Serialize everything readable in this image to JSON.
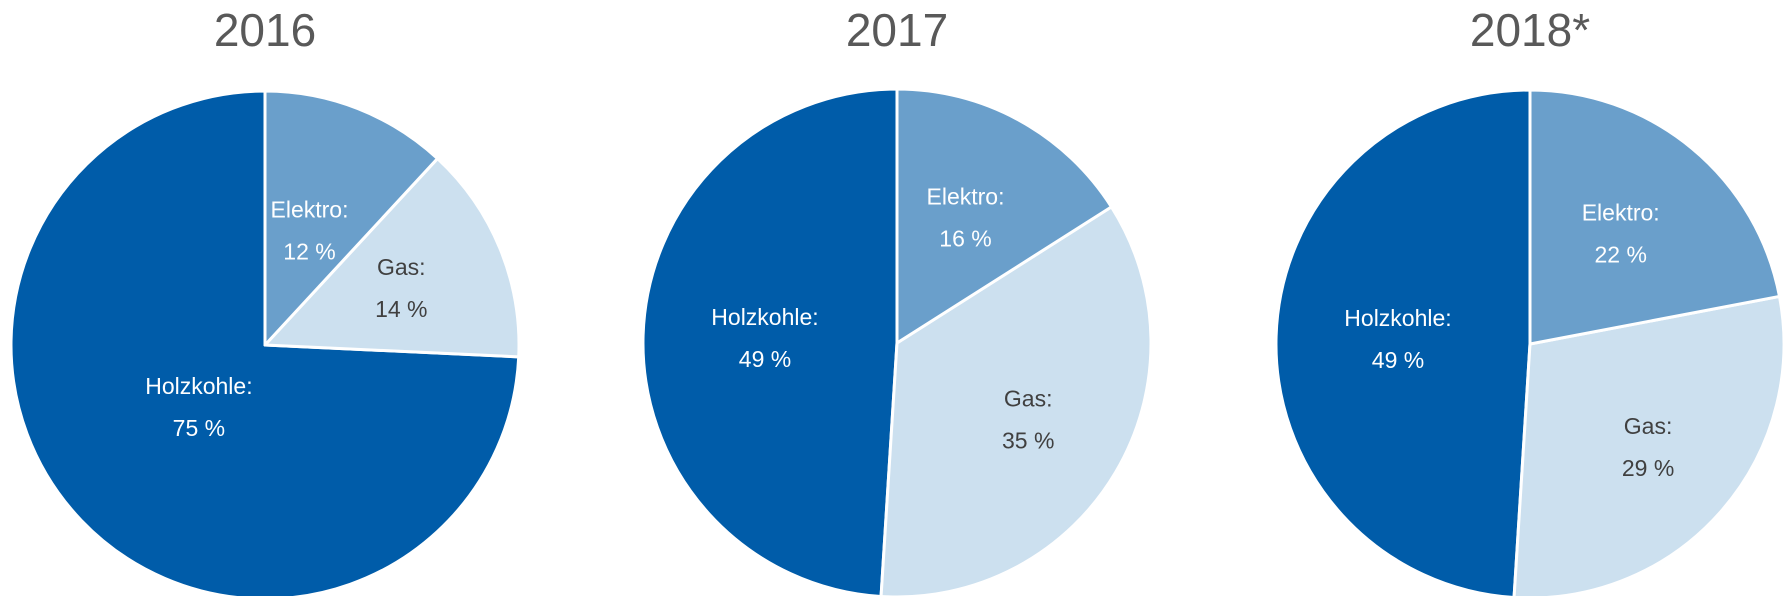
{
  "chart_data": [
    {
      "type": "pie",
      "title": "2016",
      "slices": [
        {
          "label": "Elektro:",
          "value": 12,
          "value_text": "12 %",
          "color": "#6a9fcb",
          "text_color": "#ffffff"
        },
        {
          "label": "Gas:",
          "value": 14,
          "value_text": "14 %",
          "color": "#cce0ef",
          "text_color": "#404040"
        },
        {
          "label": "Holzkohle:",
          "value": 75,
          "value_text": "75 %",
          "color": "#005ca9",
          "text_color": "#ffffff"
        }
      ]
    },
    {
      "type": "pie",
      "title": "2017",
      "slices": [
        {
          "label": "Elektro:",
          "value": 16,
          "value_text": "16 %",
          "color": "#6a9fcb",
          "text_color": "#ffffff"
        },
        {
          "label": "Gas:",
          "value": 35,
          "value_text": "35 %",
          "color": "#cce0ef",
          "text_color": "#404040"
        },
        {
          "label": "Holzkohle:",
          "value": 49,
          "value_text": "49 %",
          "color": "#005ca9",
          "text_color": "#ffffff"
        }
      ]
    },
    {
      "type": "pie",
      "title": "2018*",
      "slices": [
        {
          "label": "Elektro:",
          "value": 22,
          "value_text": "22 %",
          "color": "#6a9fcb",
          "text_color": "#ffffff"
        },
        {
          "label": "Gas:",
          "value": 29,
          "value_text": "29 %",
          "color": "#cce0ef",
          "text_color": "#404040"
        },
        {
          "label": "Holzkohle:",
          "value": 49,
          "value_text": "49 %",
          "color": "#005ca9",
          "text_color": "#ffffff"
        }
      ]
    }
  ]
}
